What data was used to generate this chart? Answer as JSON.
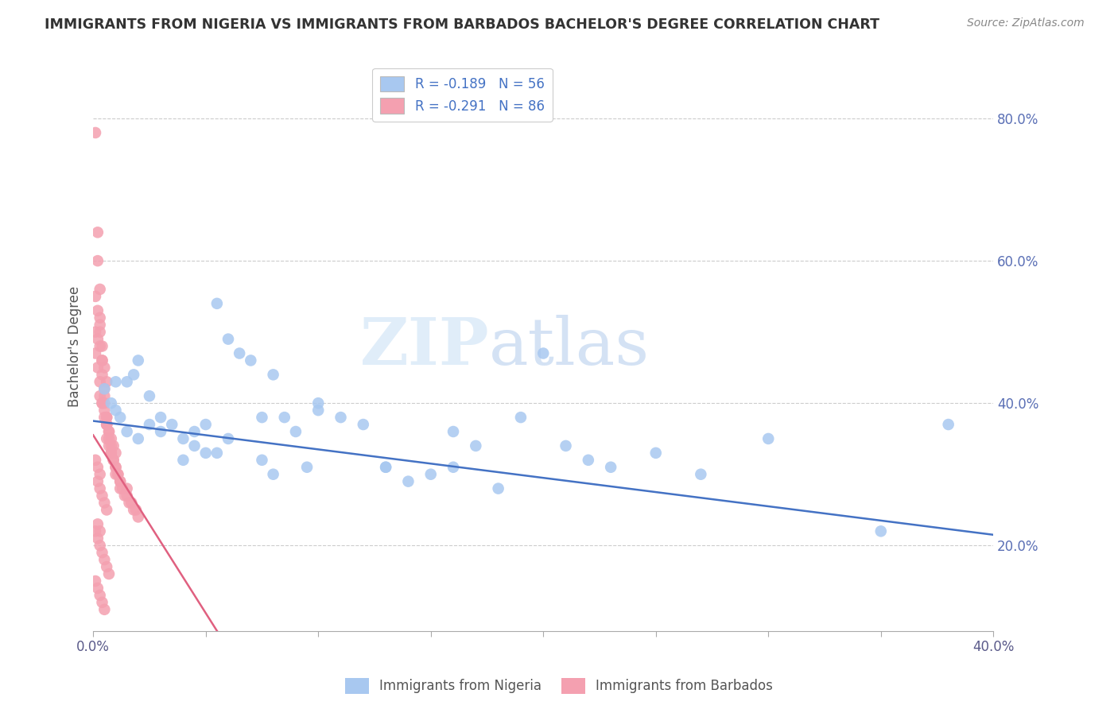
{
  "title": "IMMIGRANTS FROM NIGERIA VS IMMIGRANTS FROM BARBADOS BACHELOR'S DEGREE CORRELATION CHART",
  "source": "Source: ZipAtlas.com",
  "ylabel": "Bachelor's Degree",
  "xlim": [
    0.0,
    0.4
  ],
  "ylim": [
    0.08,
    0.88
  ],
  "xticks": [
    0.0,
    0.05,
    0.1,
    0.15,
    0.2,
    0.25,
    0.3,
    0.35,
    0.4
  ],
  "xtick_labeled": [
    0.0,
    0.4
  ],
  "xticklabels_edge": [
    "0.0%",
    "40.0%"
  ],
  "yticks": [
    0.2,
    0.4,
    0.6,
    0.8
  ],
  "yticklabels": [
    "20.0%",
    "40.0%",
    "60.0%",
    "80.0%"
  ],
  "nigeria_color": "#a8c8f0",
  "barbados_color": "#f4a0b0",
  "nigeria_line_color": "#4472c4",
  "barbados_line_color": "#e06080",
  "legend_nigeria": "R = -0.189   N = 56",
  "legend_barbados": "R = -0.291   N = 86",
  "watermark_zip": "ZIP",
  "watermark_atlas": "atlas",
  "nigeria_line_x": [
    0.0,
    0.4
  ],
  "nigeria_line_y": [
    0.375,
    0.215
  ],
  "barbados_line_x": [
    0.0,
    0.055
  ],
  "barbados_line_y": [
    0.355,
    0.08
  ],
  "nigeria_x": [
    0.005,
    0.008,
    0.01,
    0.012,
    0.015,
    0.018,
    0.02,
    0.025,
    0.03,
    0.035,
    0.04,
    0.045,
    0.05,
    0.055,
    0.06,
    0.065,
    0.07,
    0.075,
    0.08,
    0.085,
    0.09,
    0.1,
    0.11,
    0.12,
    0.13,
    0.14,
    0.15,
    0.16,
    0.17,
    0.18,
    0.19,
    0.2,
    0.21,
    0.22,
    0.23,
    0.25,
    0.27,
    0.3,
    0.35,
    0.38,
    0.01,
    0.02,
    0.03,
    0.04,
    0.05,
    0.06,
    0.08,
    0.1,
    0.13,
    0.16,
    0.015,
    0.025,
    0.045,
    0.055,
    0.075,
    0.095
  ],
  "nigeria_y": [
    0.42,
    0.4,
    0.43,
    0.38,
    0.36,
    0.44,
    0.46,
    0.41,
    0.38,
    0.37,
    0.35,
    0.36,
    0.37,
    0.54,
    0.49,
    0.47,
    0.46,
    0.38,
    0.44,
    0.38,
    0.36,
    0.39,
    0.38,
    0.37,
    0.31,
    0.29,
    0.3,
    0.36,
    0.34,
    0.28,
    0.38,
    0.47,
    0.34,
    0.32,
    0.31,
    0.33,
    0.3,
    0.35,
    0.22,
    0.37,
    0.39,
    0.35,
    0.36,
    0.32,
    0.33,
    0.35,
    0.3,
    0.4,
    0.31,
    0.31,
    0.43,
    0.37,
    0.34,
    0.33,
    0.32,
    0.31
  ],
  "barbados_x": [
    0.001,
    0.002,
    0.002,
    0.003,
    0.003,
    0.003,
    0.004,
    0.004,
    0.004,
    0.005,
    0.005,
    0.005,
    0.006,
    0.006,
    0.006,
    0.007,
    0.007,
    0.008,
    0.008,
    0.009,
    0.01,
    0.01,
    0.011,
    0.012,
    0.012,
    0.013,
    0.014,
    0.015,
    0.016,
    0.017,
    0.018,
    0.019,
    0.02,
    0.001,
    0.002,
    0.003,
    0.003,
    0.004,
    0.005,
    0.006,
    0.007,
    0.008,
    0.009,
    0.01,
    0.001,
    0.002,
    0.003,
    0.004,
    0.005,
    0.006,
    0.001,
    0.002,
    0.003,
    0.001,
    0.002,
    0.003,
    0.004,
    0.005,
    0.006,
    0.007,
    0.002,
    0.003,
    0.004,
    0.005,
    0.006,
    0.002,
    0.003,
    0.001,
    0.002,
    0.003,
    0.004,
    0.005,
    0.006,
    0.007,
    0.008,
    0.009,
    0.01,
    0.011,
    0.012,
    0.015,
    0.001,
    0.002,
    0.003,
    0.004,
    0.005,
    0.006
  ],
  "barbados_y": [
    0.78,
    0.64,
    0.6,
    0.56,
    0.52,
    0.5,
    0.48,
    0.46,
    0.44,
    0.42,
    0.41,
    0.4,
    0.38,
    0.37,
    0.37,
    0.36,
    0.35,
    0.34,
    0.33,
    0.32,
    0.31,
    0.3,
    0.3,
    0.29,
    0.28,
    0.28,
    0.27,
    0.27,
    0.26,
    0.26,
    0.25,
    0.25,
    0.24,
    0.47,
    0.45,
    0.43,
    0.41,
    0.4,
    0.38,
    0.37,
    0.36,
    0.35,
    0.34,
    0.33,
    0.5,
    0.49,
    0.48,
    0.46,
    0.45,
    0.43,
    0.32,
    0.31,
    0.3,
    0.22,
    0.21,
    0.2,
    0.19,
    0.18,
    0.17,
    0.16,
    0.29,
    0.28,
    0.27,
    0.26,
    0.25,
    0.23,
    0.22,
    0.15,
    0.14,
    0.13,
    0.12,
    0.11,
    0.35,
    0.34,
    0.33,
    0.32,
    0.31,
    0.3,
    0.29,
    0.28,
    0.55,
    0.53,
    0.51,
    0.4,
    0.39,
    0.38
  ]
}
